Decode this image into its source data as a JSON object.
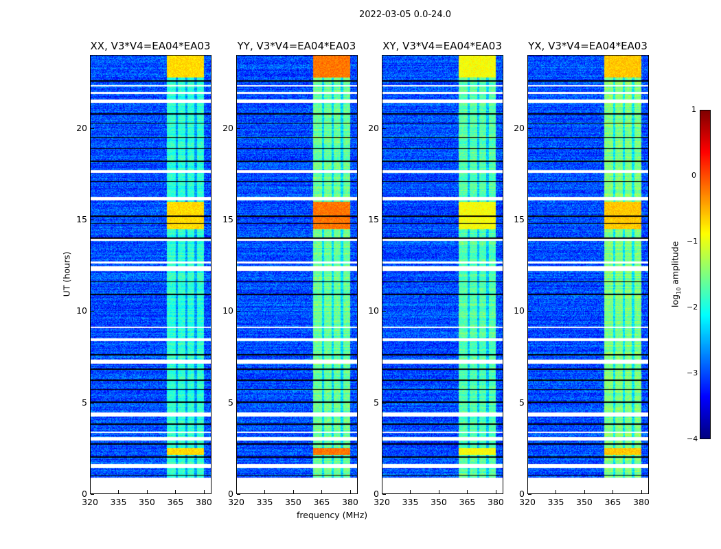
{
  "chart_data": {
    "type": "heatmap",
    "title": "2022-03-05 0.0-24.0",
    "xlabel": "frequency (MHz)",
    "ylabel": "UT (hours)",
    "xlim": [
      320,
      384
    ],
    "ylim": [
      0,
      24
    ],
    "xticks": [
      "320",
      "335",
      "350",
      "365",
      "380"
    ],
    "xtick_values": [
      320,
      335,
      350,
      365,
      380
    ],
    "yticks": [
      "0",
      "5",
      "10",
      "15",
      "20"
    ],
    "ytick_values": [
      0,
      5,
      10,
      15,
      20
    ],
    "colorbar": {
      "label": "log10 amplitude",
      "label_main": "log",
      "label_sub": "10",
      "label_rest": " amplitude",
      "colormap": "jet",
      "range": [
        -4,
        1
      ],
      "ticks": [
        "1",
        "0",
        "−1",
        "−2",
        "−3",
        "−4"
      ],
      "tick_values": [
        1,
        0,
        -1,
        -2,
        -3,
        -4
      ]
    },
    "background_level": -3.0,
    "band_mhz": [
      360.5,
      380.5
    ],
    "band_dark_lines_mhz": [
      366,
      371,
      376
    ],
    "flagged_white_hours": [
      [
        0,
        0.85
      ],
      [
        1.4,
        1.6
      ],
      [
        2.9,
        3.1
      ],
      [
        3.3,
        3.4
      ],
      [
        4.2,
        4.45
      ],
      [
        7.1,
        7.35
      ],
      [
        8.35,
        8.5
      ],
      [
        9.05,
        9.15
      ],
      [
        12.2,
        12.45
      ],
      [
        12.6,
        12.7
      ],
      [
        13.85,
        13.95
      ],
      [
        16.05,
        16.25
      ],
      [
        17.55,
        17.7
      ],
      [
        21.4,
        21.6
      ],
      [
        21.9,
        22.0
      ],
      [
        22.3,
        22.4
      ]
    ],
    "black_line_hours": [
      1.0,
      2.0,
      2.7,
      3.8,
      5.0,
      5.7,
      6.2,
      6.8,
      7.6,
      10.9,
      11.6,
      14.0,
      14.8,
      15.2,
      17.1,
      18.2,
      18.9,
      19.5,
      20.3,
      20.8,
      22.6
    ],
    "panels": [
      {
        "title": "XX, V3*V4=EA04*EA03",
        "band_level": -1.9,
        "peak_level": -0.7
      },
      {
        "title": "YY, V3*V4=EA04*EA03",
        "band_level": -1.6,
        "peak_level": -0.2
      },
      {
        "title": "XY, V3*V4=EA04*EA03",
        "band_level": -1.7,
        "peak_level": -0.9
      },
      {
        "title": "YX, V3*V4=EA04*EA03",
        "band_level": -1.5,
        "peak_level": -0.6
      }
    ]
  }
}
